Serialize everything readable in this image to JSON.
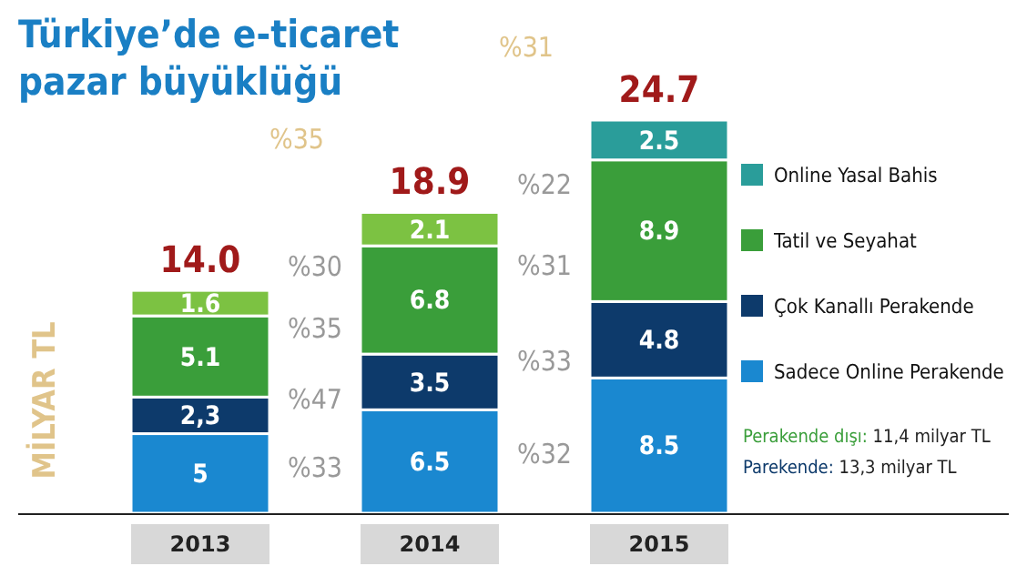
{
  "chart_data": {
    "type": "bar",
    "title": "Türkiye’de e-ticaret pazar büyüklüğü",
    "ylabel": "MİLYAR TL",
    "stacked": true,
    "legend": "right",
    "categories": [
      "2013",
      "2014",
      "2015"
    ],
    "series": [
      {
        "name": "Sadece Online Perakende",
        "color": "#1a88d0",
        "values": [
          5,
          6.5,
          8.5
        ],
        "value_labels": [
          "5",
          "6.5",
          "8.5"
        ]
      },
      {
        "name": "Çok Kanallı Perakende",
        "color": "#0d3a6b",
        "values": [
          2.3,
          3.5,
          4.8
        ],
        "value_labels": [
          "2,3",
          "3.5",
          "4.8"
        ]
      },
      {
        "name": "Tatil ve Seyahat",
        "color": "#3a9e3a",
        "values": [
          5.1,
          6.8,
          8.9
        ],
        "value_labels": [
          "5.1",
          "6.8",
          "8.9"
        ]
      },
      {
        "name": "Online Yasal Bahis",
        "color": "#2a9d9a",
        "colors": [
          "#7cc242",
          "#7cc242",
          "#2a9d9a"
        ],
        "values": [
          1.6,
          2.1,
          2.5
        ],
        "value_labels": [
          "1.6",
          "2.1",
          "2.5"
        ]
      }
    ],
    "totals": [
      "14.0",
      "18.9",
      "24.7"
    ],
    "annotations": [
      "%33",
      "%47",
      "%35",
      "%30",
      "%32",
      "%33",
      "%31",
      "%22",
      "%35",
      "%31",
      "Perakende dışı: 11,4 milyar TL",
      "Parekende: 13,3 milyar TL"
    ]
  }
}
